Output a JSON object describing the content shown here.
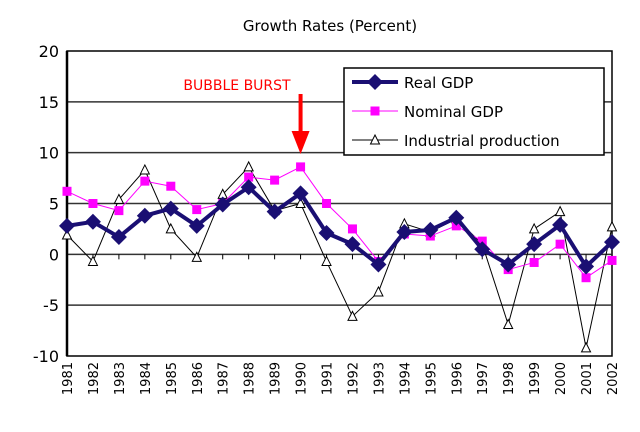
{
  "chart_data": {
    "type": "line",
    "title": "Growth Rates (Percent)",
    "xlabel": "",
    "ylabel": "",
    "ylim": [
      -10,
      20
    ],
    "yticks": [
      -10,
      -5,
      0,
      5,
      10,
      15,
      20
    ],
    "grid": true,
    "legend_placement": "top-right",
    "categories": [
      "1981",
      "1982",
      "1983",
      "1984",
      "1985",
      "1986",
      "1987",
      "1988",
      "1989",
      "1990",
      "1991",
      "1992",
      "1993",
      "1994",
      "1995",
      "1996",
      "1997",
      "1998",
      "1999",
      "2000",
      "2001",
      "2002"
    ],
    "series": [
      {
        "name": "Real GDP",
        "color": "#1a0f73",
        "marker": "diamond",
        "values": [
          2.8,
          3.2,
          1.7,
          3.8,
          4.5,
          2.8,
          4.9,
          6.6,
          4.2,
          6.0,
          2.1,
          1.0,
          -1.0,
          2.2,
          2.4,
          3.6,
          0.5,
          -1.0,
          1.0,
          2.9,
          -1.2,
          1.2
        ]
      },
      {
        "name": "Nominal GDP",
        "color": "#ff00ff",
        "marker": "square",
        "values": [
          6.2,
          5.0,
          4.3,
          7.2,
          6.7,
          4.4,
          5.0,
          7.6,
          7.3,
          8.6,
          5.0,
          2.5,
          -0.7,
          2.0,
          1.8,
          2.8,
          1.3,
          -1.5,
          -0.8,
          1.0,
          -2.3,
          -0.6
        ]
      },
      {
        "name": "Industrial production",
        "color": "#000000",
        "marker": "triangle",
        "values": [
          1.9,
          -0.7,
          5.4,
          8.3,
          2.5,
          -0.3,
          5.9,
          8.6,
          4.3,
          5.0,
          -0.7,
          -6.1,
          -3.7,
          3.0,
          2.2,
          3.5,
          1.0,
          -6.9,
          2.5,
          4.2,
          -9.2,
          2.7
        ]
      }
    ],
    "annotations": [
      {
        "text": "BUBBLE BURST",
        "color": "#ff0000",
        "x": "1990"
      }
    ]
  }
}
